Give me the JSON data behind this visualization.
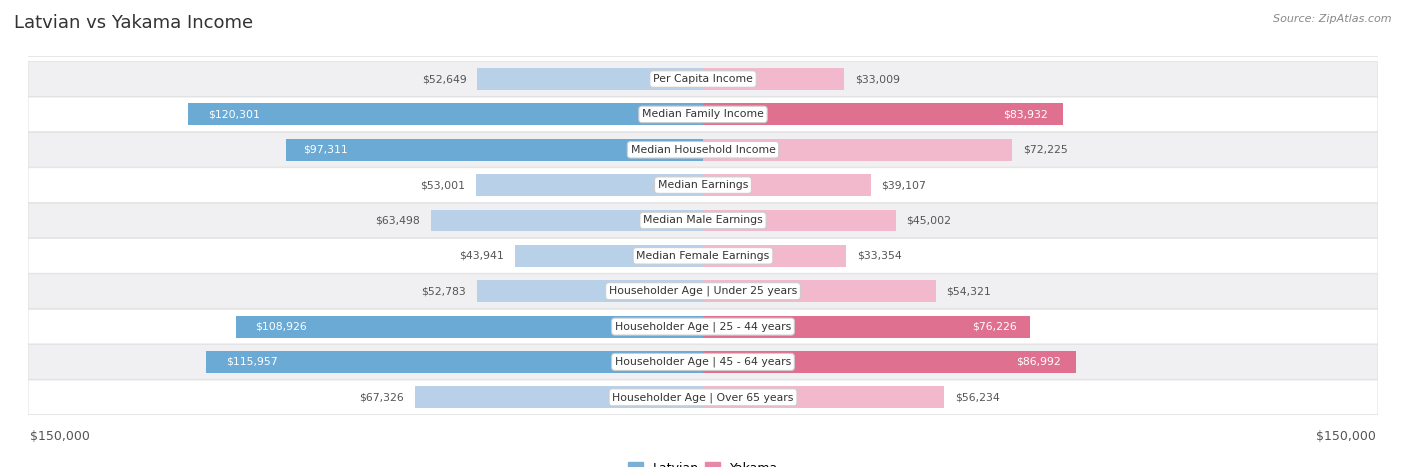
{
  "title": "Latvian vs Yakama Income",
  "source": "Source: ZipAtlas.com",
  "max_value": 150000,
  "categories": [
    "Per Capita Income",
    "Median Family Income",
    "Median Household Income",
    "Median Earnings",
    "Median Male Earnings",
    "Median Female Earnings",
    "Householder Age | Under 25 years",
    "Householder Age | 25 - 44 years",
    "Householder Age | 45 - 64 years",
    "Householder Age | Over 65 years"
  ],
  "latvian_values": [
    52649,
    120301,
    97311,
    53001,
    63498,
    43941,
    52783,
    108926,
    115957,
    67326
  ],
  "yakama_values": [
    33009,
    83932,
    72225,
    39107,
    45002,
    33354,
    54321,
    76226,
    86992,
    56234
  ],
  "latvian_color_light": "#b8d0e8",
  "latvian_color_dark": "#6aaad4",
  "yakama_color_light": "#f2b8cb",
  "yakama_color_dark": "#e07090",
  "label_color_inside": "#ffffff",
  "label_color_outside": "#555555",
  "bg_row_even": "#f0f0f2",
  "bg_row_odd": "#ffffff",
  "latvian_legend_color": "#7bafd4",
  "yakama_legend_color": "#e888a8",
  "bar_height": 0.62,
  "inside_threshold": 75000,
  "title_color": "#333333",
  "source_color": "#888888"
}
